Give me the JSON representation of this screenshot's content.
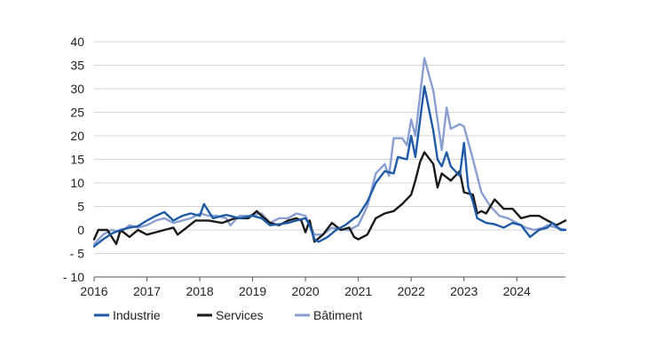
{
  "chart_data": {
    "type": "line",
    "title": "",
    "xlabel": "",
    "ylabel": "",
    "xlim": [
      2016,
      2024.92
    ],
    "ylim": [
      -10,
      40
    ],
    "y_ticks": [
      -10,
      -5,
      0,
      5,
      10,
      15,
      20,
      25,
      30,
      35,
      40
    ],
    "y_tick_labels": [
      "- 10",
      "- 5",
      "0",
      "5",
      "10",
      "15",
      "20",
      "25",
      "30",
      "35",
      "40"
    ],
    "x_ticks": [
      2016,
      2017,
      2018,
      2019,
      2020,
      2021,
      2022,
      2023,
      2024
    ],
    "x_tick_labels": [
      "2016",
      "2017",
      "2018",
      "2019",
      "2020",
      "2021",
      "2022",
      "2023",
      "2024"
    ],
    "grid": "horizontal",
    "legend_position": "bottom",
    "series": [
      {
        "name": "Industrie",
        "color": "#1f5aa6",
        "points": [
          [
            2016.0,
            -3.5
          ],
          [
            2016.17,
            -2.0
          ],
          [
            2016.33,
            -0.8
          ],
          [
            2016.5,
            0.0
          ],
          [
            2016.67,
            0.5
          ],
          [
            2016.83,
            0.8
          ],
          [
            2017.0,
            2.0
          ],
          [
            2017.17,
            3.0
          ],
          [
            2017.33,
            3.8
          ],
          [
            2017.5,
            2.0
          ],
          [
            2017.67,
            3.0
          ],
          [
            2017.83,
            3.5
          ],
          [
            2018.0,
            3.0
          ],
          [
            2018.08,
            5.5
          ],
          [
            2018.25,
            2.5
          ],
          [
            2018.5,
            3.2
          ],
          [
            2018.75,
            2.5
          ],
          [
            2019.0,
            3.0
          ],
          [
            2019.17,
            2.5
          ],
          [
            2019.33,
            1.0
          ],
          [
            2019.5,
            1.2
          ],
          [
            2019.67,
            1.5
          ],
          [
            2019.83,
            2.0
          ],
          [
            2020.0,
            2.5
          ],
          [
            2020.08,
            1.0
          ],
          [
            2020.17,
            -2.0
          ],
          [
            2020.25,
            -2.5
          ],
          [
            2020.42,
            -1.5
          ],
          [
            2020.58,
            0.0
          ],
          [
            2020.75,
            1.0
          ],
          [
            2020.92,
            2.5
          ],
          [
            2021.0,
            3.0
          ],
          [
            2021.17,
            6.0
          ],
          [
            2021.33,
            10.0
          ],
          [
            2021.5,
            12.5
          ],
          [
            2021.67,
            12.0
          ],
          [
            2021.75,
            15.5
          ],
          [
            2021.92,
            15.0
          ],
          [
            2022.0,
            20.0
          ],
          [
            2022.08,
            15.5
          ],
          [
            2022.25,
            30.5
          ],
          [
            2022.42,
            21.0
          ],
          [
            2022.5,
            15.0
          ],
          [
            2022.58,
            13.5
          ],
          [
            2022.67,
            16.5
          ],
          [
            2022.75,
            13.5
          ],
          [
            2022.92,
            11.5
          ],
          [
            2023.0,
            18.5
          ],
          [
            2023.08,
            9.0
          ],
          [
            2023.17,
            6.0
          ],
          [
            2023.25,
            2.5
          ],
          [
            2023.42,
            1.5
          ],
          [
            2023.58,
            1.2
          ],
          [
            2023.75,
            0.5
          ],
          [
            2023.92,
            1.5
          ],
          [
            2024.08,
            1.0
          ],
          [
            2024.25,
            -1.5
          ],
          [
            2024.42,
            0.0
          ],
          [
            2024.58,
            0.5
          ],
          [
            2024.67,
            1.5
          ],
          [
            2024.83,
            0.0
          ],
          [
            2024.92,
            0.0
          ]
        ]
      },
      {
        "name": "Services",
        "color": "#1a1a1a",
        "points": [
          [
            2016.0,
            -2.0
          ],
          [
            2016.08,
            0.0
          ],
          [
            2016.25,
            0.0
          ],
          [
            2016.42,
            -3.0
          ],
          [
            2016.5,
            0.0
          ],
          [
            2016.67,
            -1.5
          ],
          [
            2016.83,
            0.0
          ],
          [
            2017.0,
            -1.0
          ],
          [
            2017.17,
            -0.5
          ],
          [
            2017.33,
            0.0
          ],
          [
            2017.5,
            0.5
          ],
          [
            2017.58,
            -1.0
          ],
          [
            2017.75,
            0.5
          ],
          [
            2017.92,
            2.0
          ],
          [
            2018.17,
            2.0
          ],
          [
            2018.42,
            1.5
          ],
          [
            2018.67,
            2.5
          ],
          [
            2018.92,
            2.5
          ],
          [
            2019.08,
            4.0
          ],
          [
            2019.17,
            3.0
          ],
          [
            2019.33,
            1.5
          ],
          [
            2019.5,
            1.0
          ],
          [
            2019.67,
            2.0
          ],
          [
            2019.83,
            2.5
          ],
          [
            2019.92,
            2.0
          ],
          [
            2020.0,
            -0.5
          ],
          [
            2020.08,
            2.0
          ],
          [
            2020.17,
            -2.5
          ],
          [
            2020.33,
            -1.0
          ],
          [
            2020.5,
            1.5
          ],
          [
            2020.67,
            0.0
          ],
          [
            2020.83,
            0.5
          ],
          [
            2020.92,
            -1.5
          ],
          [
            2021.0,
            -2.0
          ],
          [
            2021.17,
            -1.0
          ],
          [
            2021.33,
            2.5
          ],
          [
            2021.5,
            3.5
          ],
          [
            2021.67,
            4.0
          ],
          [
            2021.83,
            5.5
          ],
          [
            2022.0,
            7.5
          ],
          [
            2022.08,
            10.5
          ],
          [
            2022.17,
            14.5
          ],
          [
            2022.25,
            16.5
          ],
          [
            2022.42,
            14.0
          ],
          [
            2022.5,
            9.0
          ],
          [
            2022.58,
            12.0
          ],
          [
            2022.75,
            10.5
          ],
          [
            2022.92,
            12.5
          ],
          [
            2023.0,
            8.0
          ],
          [
            2023.17,
            7.5
          ],
          [
            2023.25,
            3.5
          ],
          [
            2023.33,
            4.0
          ],
          [
            2023.42,
            3.5
          ],
          [
            2023.58,
            6.5
          ],
          [
            2023.75,
            4.5
          ],
          [
            2023.92,
            4.5
          ],
          [
            2024.08,
            2.5
          ],
          [
            2024.25,
            3.0
          ],
          [
            2024.42,
            3.0
          ],
          [
            2024.58,
            2.0
          ],
          [
            2024.75,
            1.0
          ],
          [
            2024.92,
            2.0
          ]
        ]
      },
      {
        "name": "Bâtiment",
        "color": "#8a9fd1",
        "points": [
          [
            2016.0,
            -3.0
          ],
          [
            2016.17,
            -1.0
          ],
          [
            2016.33,
            0.0
          ],
          [
            2016.5,
            -0.5
          ],
          [
            2016.67,
            1.0
          ],
          [
            2016.83,
            0.5
          ],
          [
            2017.0,
            1.0
          ],
          [
            2017.17,
            2.0
          ],
          [
            2017.33,
            2.5
          ],
          [
            2017.5,
            1.5
          ],
          [
            2017.67,
            2.0
          ],
          [
            2017.83,
            2.5
          ],
          [
            2018.0,
            3.5
          ],
          [
            2018.17,
            3.0
          ],
          [
            2018.33,
            3.0
          ],
          [
            2018.5,
            2.5
          ],
          [
            2018.58,
            1.0
          ],
          [
            2018.75,
            3.0
          ],
          [
            2018.92,
            3.0
          ],
          [
            2019.17,
            3.5
          ],
          [
            2019.33,
            1.5
          ],
          [
            2019.5,
            2.5
          ],
          [
            2019.67,
            2.5
          ],
          [
            2019.83,
            3.5
          ],
          [
            2020.0,
            3.0
          ],
          [
            2020.17,
            -1.0
          ],
          [
            2020.33,
            -1.0
          ],
          [
            2020.5,
            0.5
          ],
          [
            2020.67,
            0.0
          ],
          [
            2020.83,
            0.0
          ],
          [
            2021.0,
            1.0
          ],
          [
            2021.17,
            5.0
          ],
          [
            2021.33,
            12.0
          ],
          [
            2021.5,
            14.0
          ],
          [
            2021.58,
            11.5
          ],
          [
            2021.67,
            19.5
          ],
          [
            2021.83,
            19.5
          ],
          [
            2021.92,
            18.0
          ],
          [
            2022.0,
            23.5
          ],
          [
            2022.08,
            20.0
          ],
          [
            2022.25,
            36.5
          ],
          [
            2022.42,
            29.5
          ],
          [
            2022.58,
            17.0
          ],
          [
            2022.67,
            26.0
          ],
          [
            2022.75,
            21.5
          ],
          [
            2022.92,
            22.5
          ],
          [
            2023.0,
            22.0
          ],
          [
            2023.17,
            15.0
          ],
          [
            2023.33,
            8.0
          ],
          [
            2023.5,
            5.0
          ],
          [
            2023.67,
            3.0
          ],
          [
            2023.83,
            2.5
          ],
          [
            2024.0,
            1.5
          ],
          [
            2024.17,
            0.5
          ],
          [
            2024.33,
            0.0
          ],
          [
            2024.5,
            0.5
          ],
          [
            2024.58,
            1.0
          ],
          [
            2024.75,
            0.5
          ],
          [
            2024.92,
            0.0
          ]
        ]
      }
    ]
  }
}
